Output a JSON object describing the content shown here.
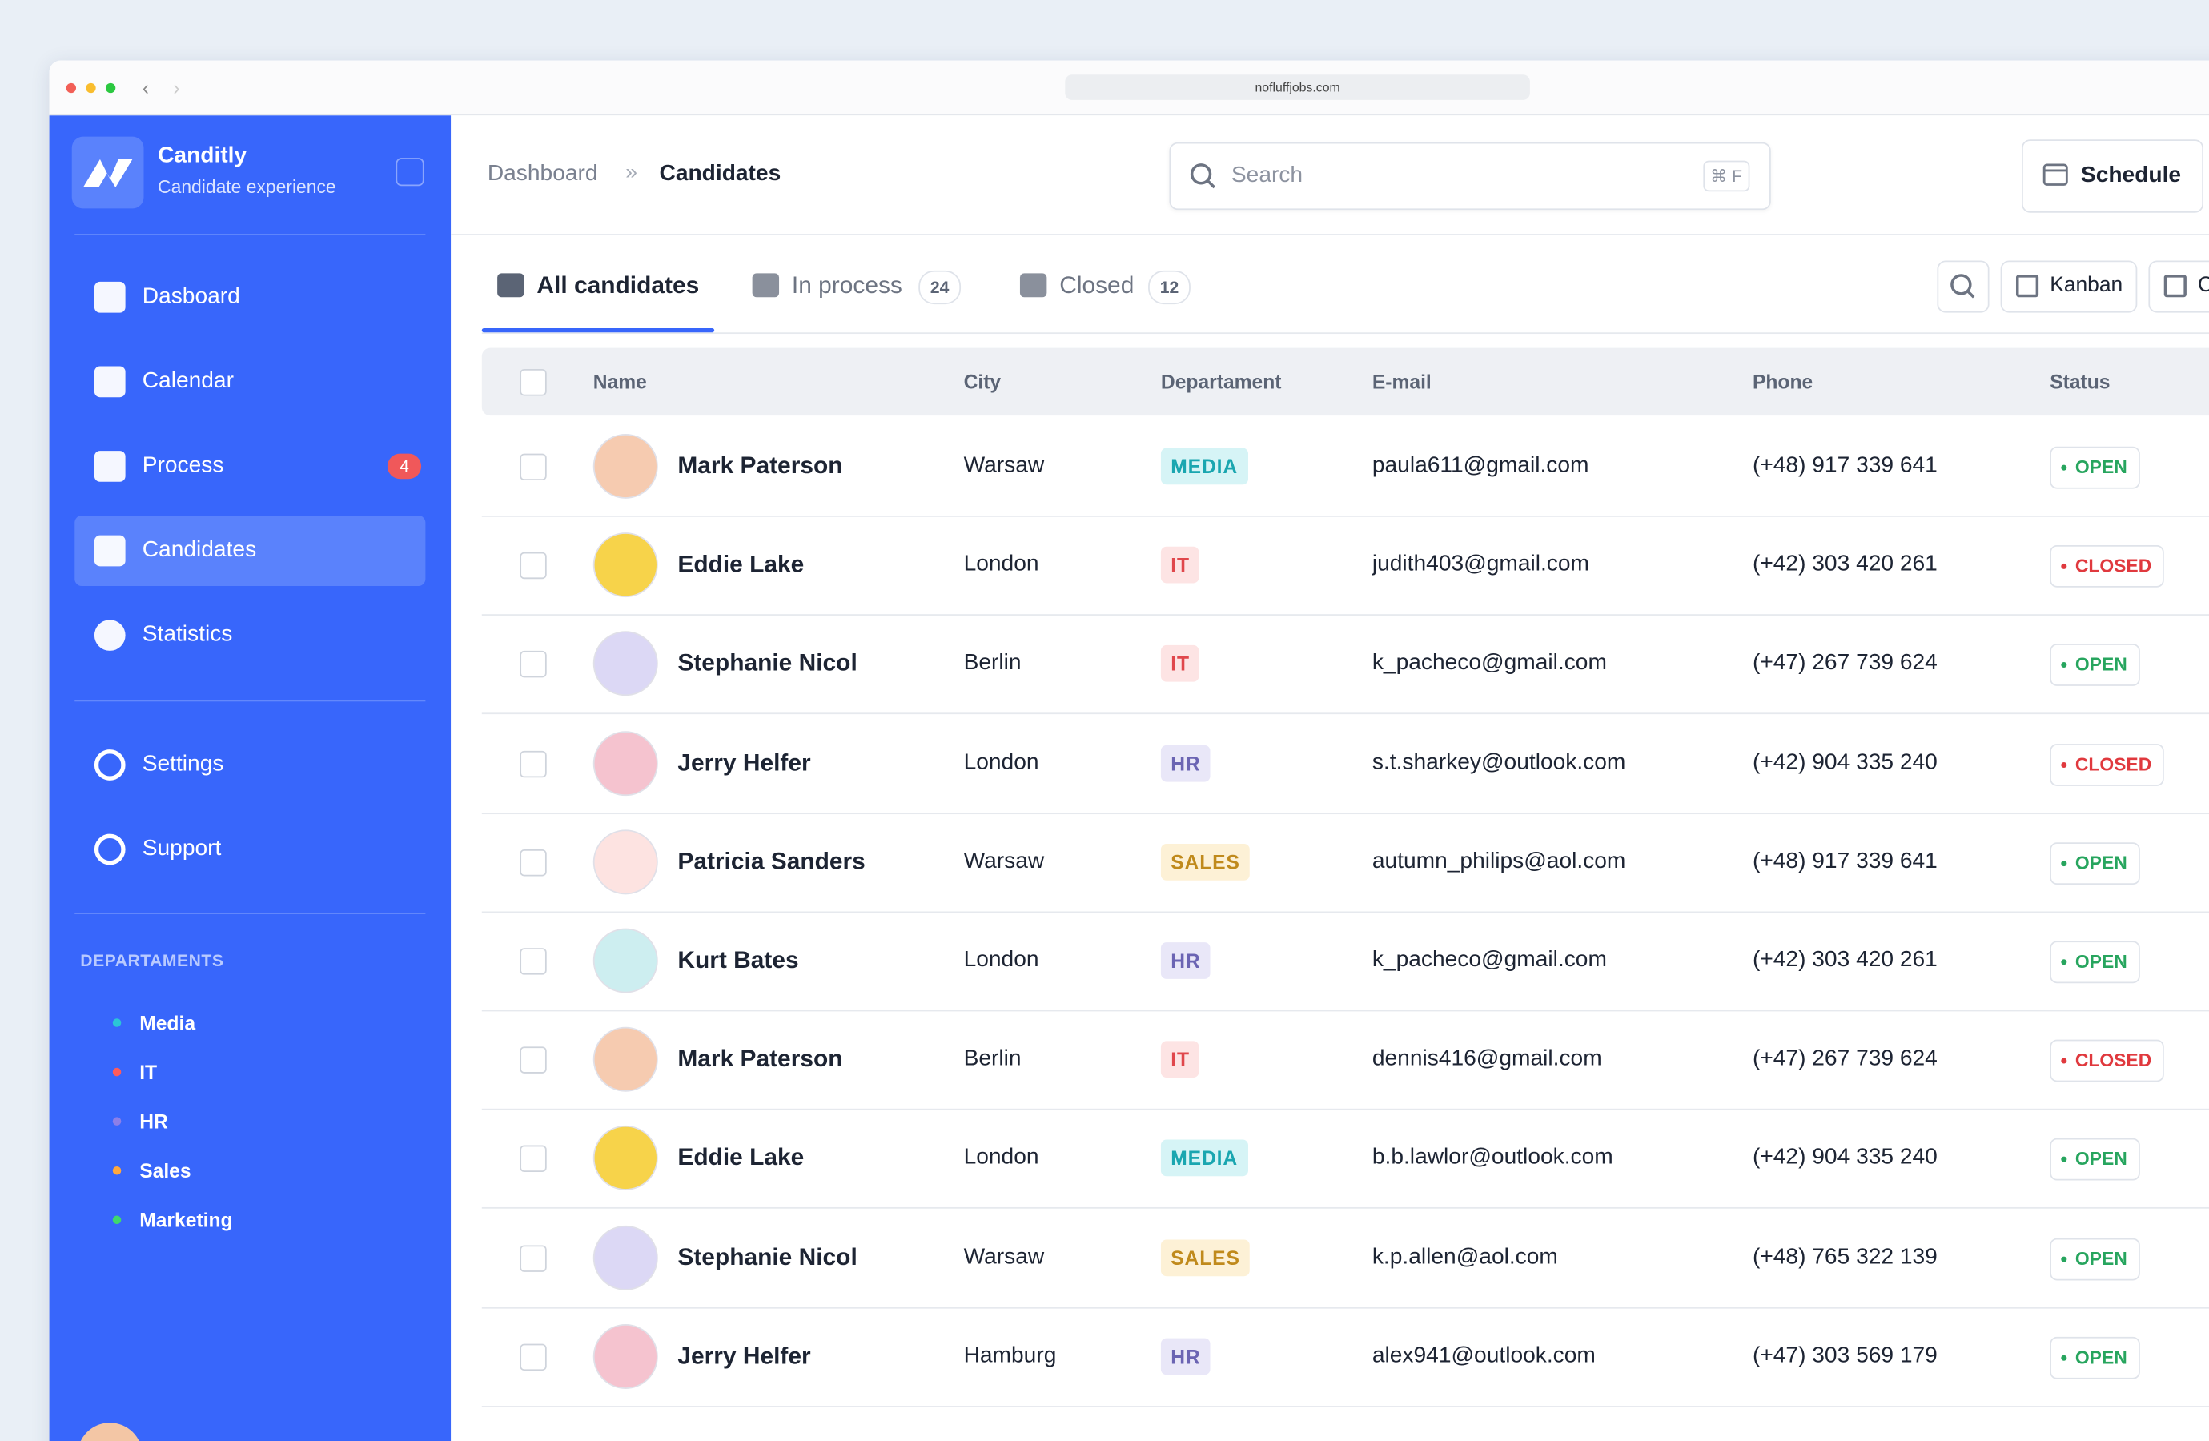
{
  "browser": {
    "url": "nofluffjobs.com"
  },
  "sidebar": {
    "brand": "Canditly",
    "tagline": "Candidate experience",
    "nav": [
      {
        "label": "Dasboard"
      },
      {
        "label": "Calendar"
      },
      {
        "label": "Process",
        "badge": "4"
      },
      {
        "label": "Candidates",
        "active": true
      },
      {
        "label": "Statistics"
      }
    ],
    "nav_bottom": [
      {
        "label": "Settings"
      },
      {
        "label": "Support"
      }
    ],
    "departments_title": "DEPARTAMENTS",
    "departments": [
      {
        "label": "Media",
        "color": "#2bc6d6"
      },
      {
        "label": "IT",
        "color": "#ff5b5b"
      },
      {
        "label": "HR",
        "color": "#8c7fe8"
      },
      {
        "label": "Sales",
        "color": "#ffa83d"
      },
      {
        "label": "Marketing",
        "color": "#3fd86d"
      }
    ]
  },
  "header": {
    "breadcrumb": [
      "Dashboard",
      "Candidates"
    ],
    "search_placeholder": "Search",
    "shortcut": "⌘ F",
    "button": "Schedule"
  },
  "tabs": [
    {
      "label": "All candidates",
      "active": true
    },
    {
      "label": "In process",
      "count": "24"
    },
    {
      "label": "Closed",
      "count": "12"
    }
  ],
  "views": [
    "Kanban",
    "Ca"
  ],
  "table": {
    "columns": [
      "Name",
      "City",
      "Departament",
      "E-mail",
      "Phone",
      "Status"
    ],
    "rows": [
      {
        "name": "Mark Paterson",
        "city": "Warsaw",
        "department": "MEDIA",
        "department_color": "#1aa6b0",
        "department_bg": "#d6f4f6",
        "email": "paula611@gmail.com",
        "phone": "(+48) 917 339 641",
        "status": "OPEN",
        "status_color": "#27a55e"
      },
      {
        "name": "Eddie Lake",
        "city": "London",
        "department": "IT",
        "department_color": "#e0474c",
        "department_bg": "#fde4e4",
        "email": "judith403@gmail.com",
        "phone": "(+42) 303 420 261",
        "status": "CLOSED",
        "status_color": "#e0393e"
      },
      {
        "name": "Stephanie Nicol",
        "city": "Berlin",
        "department": "IT",
        "department_color": "#e0474c",
        "department_bg": "#fde4e4",
        "email": "k_pacheco@gmail.com",
        "phone": "(+47) 267 739 624",
        "status": "OPEN",
        "status_color": "#27a55e"
      },
      {
        "name": "Jerry Helfer",
        "city": "London",
        "department": "HR",
        "department_color": "#6b64b3",
        "department_bg": "#e9e7f8",
        "email": "s.t.sharkey@outlook.com",
        "phone": "(+42) 904 335 240",
        "status": "CLOSED",
        "status_color": "#e0393e"
      },
      {
        "name": "Patricia Sanders",
        "city": "Warsaw",
        "department": "SALES",
        "department_color": "#c08a1c",
        "department_bg": "#fdf1d6",
        "email": "autumn_philips@aol.com",
        "phone": "(+48) 917 339 641",
        "status": "OPEN",
        "status_color": "#27a55e"
      },
      {
        "name": "Kurt Bates",
        "city": "London",
        "department": "HR",
        "department_color": "#6b64b3",
        "department_bg": "#e9e7f8",
        "email": "k_pacheco@gmail.com",
        "phone": "(+42) 303 420 261",
        "status": "OPEN",
        "status_color": "#27a55e"
      },
      {
        "name": "Mark Paterson",
        "city": "Berlin",
        "department": "IT",
        "department_color": "#e0474c",
        "department_bg": "#fde4e4",
        "email": "dennis416@gmail.com",
        "phone": "(+47) 267 739 624",
        "status": "CLOSED",
        "status_color": "#e0393e"
      },
      {
        "name": "Eddie Lake",
        "city": "London",
        "department": "MEDIA",
        "department_color": "#1aa6b0",
        "department_bg": "#d6f4f6",
        "email": "b.b.lawlor@outlook.com",
        "phone": "(+42) 904 335 240",
        "status": "OPEN",
        "status_color": "#27a55e"
      },
      {
        "name": "Stephanie Nicol",
        "city": "Warsaw",
        "department": "SALES",
        "department_color": "#c08a1c",
        "department_bg": "#fdf1d6",
        "email": "k.p.allen@aol.com",
        "phone": "(+48) 765 322 139",
        "status": "OPEN",
        "status_color": "#27a55e"
      },
      {
        "name": "Jerry Helfer",
        "city": "Hamburg",
        "department": "HR",
        "department_color": "#6b64b3",
        "department_bg": "#e9e7f8",
        "email": "alex941@outlook.com",
        "phone": "(+47) 303 569 179",
        "status": "OPEN",
        "status_color": "#27a55e"
      }
    ]
  }
}
